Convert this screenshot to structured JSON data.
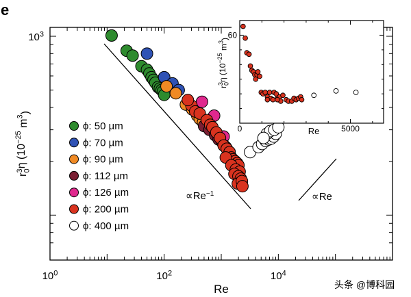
{
  "panel_label": "e",
  "watermark": "头条 @博科园",
  "chart_data": [
    {
      "type": "scatter",
      "xscale": "log",
      "yscale": "log",
      "xlim": [
        1,
        1000000
      ],
      "ylim": [
        50,
        1000
      ],
      "xlabel": "Re",
      "ylabel": {
        "base": "r",
        "sub": "0",
        "sup": "3",
        "rest": "η (10",
        "exp": "−25",
        "unit": " m",
        "unit_sup": "3",
        "close": ")"
      },
      "x_tick_labels": [
        {
          "value": 1,
          "base": "10",
          "exp": "0"
        },
        {
          "value": 100,
          "base": "10",
          "exp": "2"
        },
        {
          "value": 10000,
          "base": "10",
          "exp": "4"
        }
      ],
      "y_tick_labels": [
        {
          "value": 1000,
          "base": "10",
          "exp": "3"
        }
      ],
      "legend_position": "left",
      "series": [
        {
          "name": "ϕ: 50 µm",
          "color": "#2e8b2e",
          "points": [
            [
              12,
              1010
            ],
            [
              22,
              830
            ],
            [
              28,
              780
            ],
            [
              40,
              680
            ],
            [
              50,
              650
            ],
            [
              55,
              620
            ],
            [
              60,
              590
            ],
            [
              65,
              570
            ],
            [
              70,
              550
            ],
            [
              78,
              520
            ],
            [
              84,
              510
            ],
            [
              90,
              500
            ],
            [
              95,
              490
            ],
            [
              100,
              470
            ]
          ]
        },
        {
          "name": "ϕ: 70 µm",
          "color": "#2f52b5",
          "points": [
            [
              50,
              800
            ],
            [
              100,
              590
            ],
            [
              140,
              545
            ],
            [
              180,
              500
            ]
          ]
        },
        {
          "name": "ϕ: 90 µm",
          "color": "#f08a24",
          "points": [
            [
              110,
              525
            ],
            [
              160,
              480
            ],
            [
              240,
              415
            ],
            [
              310,
              390
            ],
            [
              380,
              360
            ],
            [
              420,
              345
            ],
            [
              480,
              330
            ],
            [
              520,
              320
            ]
          ]
        },
        {
          "name": "ϕ: 112 µm",
          "color": "#7a1f33",
          "points": [
            [
              500,
              315
            ],
            [
              620,
              300
            ],
            [
              780,
              280
            ],
            [
              900,
              265
            ],
            [
              1050,
              255
            ],
            [
              1200,
              240
            ]
          ]
        },
        {
          "name": "ϕ: 126 µm",
          "color": "#e0288e",
          "points": [
            [
              460,
              430
            ],
            [
              750,
              360
            ],
            [
              1100,
              275
            ]
          ]
        },
        {
          "name": "ϕ: 200 µm",
          "color": "#d9331f",
          "points": [
            [
              300,
              410
            ],
            [
              260,
              440
            ],
            [
              350,
              380
            ],
            [
              420,
              370
            ],
            [
              560,
              340
            ],
            [
              640,
              320
            ],
            [
              700,
              310
            ],
            [
              820,
              290
            ],
            [
              950,
              270
            ],
            [
              1100,
              245
            ],
            [
              1250,
              235
            ],
            [
              1400,
              225
            ],
            [
              1500,
              210
            ],
            [
              1600,
              205
            ],
            [
              1750,
              200
            ],
            [
              1900,
              195
            ],
            [
              2000,
              190
            ],
            [
              1200,
              210
            ],
            [
              1500,
              190
            ],
            [
              1800,
              180
            ],
            [
              2100,
              175
            ],
            [
              1700,
              170
            ],
            [
              2000,
              165
            ],
            [
              2200,
              160
            ],
            [
              1950,
              150
            ],
            [
              2300,
              155
            ],
            [
              2350,
              145
            ]
          ]
        },
        {
          "name": "ϕ: 400 µm",
          "color": "#ffffff",
          "points": [
            [
              3200,
              225
            ],
            [
              4500,
              240
            ],
            [
              5200,
              250
            ],
            [
              6000,
              260
            ],
            [
              6800,
              265
            ],
            [
              7500,
              268
            ],
            [
              8300,
              275
            ],
            [
              9000,
              285
            ],
            [
              6300,
              285
            ],
            [
              7200,
              295
            ],
            [
              8500,
              300
            ],
            [
              10000,
              310
            ],
            [
              5500,
              270
            ]
          ]
        }
      ],
      "annotations": [
        {
          "label": "∝Re",
          "sup": "−1",
          "slope": -1
        },
        {
          "label": "∝Re",
          "sup": "",
          "slope": 1
        }
      ]
    },
    {
      "type": "scatter",
      "inset": true,
      "xlim": [
        0,
        6500
      ],
      "ylim": [
        0,
        70
      ],
      "xlabel": "Re",
      "ylabel": {
        "base": "r",
        "sub": "0",
        "sup": "3",
        "rest": "η (10",
        "exp": "−25",
        "unit": " m",
        "unit_sup": "3",
        "close": ")"
      },
      "x_tick_labels": [
        {
          "value": 0,
          "text": "0"
        },
        {
          "value": 5000,
          "text": "5000"
        }
      ],
      "y_tick_labels": [
        {
          "value": 60,
          "text": "60"
        }
      ],
      "series": [
        {
          "name": "filled",
          "color": "#d9331f",
          "points": [
            [
              150,
              66
            ],
            [
              250,
              58
            ],
            [
              320,
              48
            ],
            [
              420,
              47
            ],
            [
              480,
              39
            ],
            [
              550,
              36
            ],
            [
              620,
              35
            ],
            [
              680,
              33
            ],
            [
              720,
              30
            ],
            [
              780,
              33
            ],
            [
              820,
              35
            ],
            [
              900,
              32
            ],
            [
              970,
              21
            ],
            [
              1050,
              20
            ],
            [
              1150,
              21
            ],
            [
              1250,
              18
            ],
            [
              1350,
              21
            ],
            [
              1400,
              17
            ],
            [
              1500,
              16
            ],
            [
              1550,
              21
            ],
            [
              1650,
              20
            ],
            [
              1700,
              17
            ],
            [
              1800,
              18
            ],
            [
              1850,
              15
            ],
            [
              1950,
              19
            ],
            [
              2100,
              16
            ],
            [
              2200,
              15
            ],
            [
              2350,
              15
            ],
            [
              2450,
              17
            ],
            [
              2550,
              16
            ],
            [
              2650,
              17
            ],
            [
              2750,
              18
            ],
            [
              2800,
              16
            ],
            [
              1250,
              16
            ],
            [
              1700,
              16
            ]
          ]
        },
        {
          "name": "open",
          "color": "#ffffff",
          "points": [
            [
              3350,
              19
            ],
            [
              4350,
              22
            ],
            [
              5250,
              21
            ]
          ]
        }
      ]
    }
  ]
}
